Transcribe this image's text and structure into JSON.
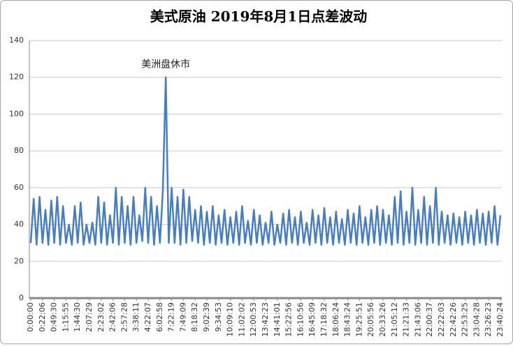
{
  "chart_data": {
    "type": "line",
    "title": "美式原油 2019年8月1日点差波动",
    "annotation": "美洲盘休市",
    "color": "#4a7ebb",
    "categories": [
      "0:00:00",
      null,
      null,
      null,
      "0:22:06",
      null,
      null,
      null,
      "0:49:30",
      null,
      null,
      null,
      "1:15:55",
      null,
      null,
      null,
      "1:44:30",
      null,
      null,
      null,
      "2:07:29",
      null,
      null,
      null,
      "2:23:02",
      null,
      null,
      null,
      "2:42:06",
      null,
      null,
      null,
      "2:57:28",
      null,
      null,
      null,
      "3:38:11",
      null,
      null,
      null,
      "4:22:07",
      null,
      null,
      null,
      "6:02:58",
      null,
      null,
      null,
      "7:22:19",
      null,
      null,
      null,
      "7:49:09",
      null,
      null,
      null,
      "8:18:32",
      null,
      null,
      null,
      "9:02:39",
      null,
      null,
      null,
      "9:34:53",
      null,
      null,
      null,
      "10:09:10",
      null,
      null,
      null,
      "11:02:02",
      null,
      null,
      null,
      "12:00:53",
      null,
      null,
      null,
      "13:42:23",
      null,
      null,
      null,
      "14:41:01",
      null,
      null,
      null,
      "15:22:56",
      null,
      null,
      null,
      "16:10:56",
      null,
      null,
      null,
      "16:45:09",
      null,
      null,
      null,
      "17:18:32",
      null,
      null,
      null,
      "18:06:24",
      null,
      null,
      null,
      "18:43:24",
      null,
      null,
      null,
      "19:25:51",
      null,
      null,
      null,
      "20:05:56",
      null,
      null,
      null,
      "20:33:26",
      null,
      null,
      null,
      "21:05:12",
      null,
      null,
      null,
      "21:21:33",
      null,
      null,
      null,
      "21:43:06",
      null,
      null,
      null,
      "22:00:37",
      null,
      null,
      null,
      "22:22:03",
      null,
      null,
      null,
      "22:42:26",
      null,
      null,
      null,
      "22:53:25",
      null,
      null,
      null,
      "23:04:28",
      null,
      null,
      null,
      "23:26:23",
      null,
      null,
      null,
      "23:40:24"
    ],
    "values": [
      30,
      54,
      29,
      55,
      30,
      48,
      29,
      53,
      30,
      55,
      29,
      50,
      30,
      40,
      29,
      50,
      30,
      52,
      29,
      40,
      30,
      41,
      29,
      55,
      30,
      52,
      29,
      45,
      30,
      60,
      29,
      55,
      30,
      50,
      29,
      55,
      30,
      45,
      31,
      60,
      30,
      55,
      29,
      50,
      30,
      58,
      120,
      30,
      60,
      30,
      55,
      29,
      59,
      30,
      55,
      31,
      48,
      30,
      50,
      29,
      47,
      30,
      50,
      29,
      45,
      30,
      48,
      29,
      44,
      30,
      47,
      29,
      50,
      30,
      42,
      29,
      48,
      30,
      45,
      29,
      41,
      30,
      47,
      29,
      40,
      30,
      46,
      29,
      48,
      30,
      44,
      29,
      47,
      30,
      41,
      29,
      48,
      30,
      45,
      29,
      49,
      30,
      44,
      29,
      47,
      30,
      43,
      29,
      48,
      30,
      46,
      29,
      50,
      30,
      44,
      29,
      48,
      30,
      50,
      29,
      48,
      30,
      45,
      29,
      55,
      30,
      58,
      29,
      47,
      30,
      60,
      29,
      48,
      30,
      55,
      29,
      50,
      30,
      60,
      29,
      47,
      30,
      45,
      29,
      46,
      30,
      44,
      29,
      47,
      30,
      45,
      29,
      48,
      30,
      46,
      29,
      47,
      30,
      50,
      29,
      45
    ],
    "ylim": [
      0,
      140
    ],
    "yticks": [
      0,
      20,
      40,
      60,
      80,
      100,
      120,
      140
    ],
    "grid": true
  }
}
